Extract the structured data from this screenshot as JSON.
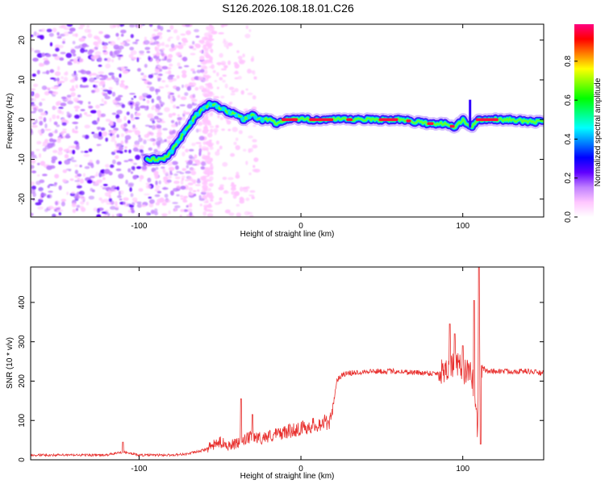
{
  "title": "S126.2026.108.18.01.C26",
  "chart_data": [
    {
      "type": "heatmap",
      "name": "spectrogram",
      "xlabel": "Height of straight line (km)",
      "ylabel": "Frequency (Hz)",
      "xlim": [
        -167,
        150
      ],
      "ylim": [
        -24.5,
        24
      ],
      "xticks": [
        -100,
        0,
        100
      ],
      "yticks": [
        -20,
        -10,
        0,
        10,
        20
      ],
      "colorbar": {
        "label": "Normalized spectral amplitude",
        "range": [
          0,
          0.99
        ],
        "ticks": [
          0.0,
          0.2,
          0.4,
          0.6,
          0.8
        ],
        "tick_labels": [
          "0.0",
          "0.2",
          "0.4",
          "0.6",
          "0.8"
        ],
        "colormap": [
          "#ffffff",
          "#ffc6ff",
          "#c080ff",
          "#6000ff",
          "#0000ff",
          "#0080ff",
          "#00ffff",
          "#00ff80",
          "#00ff00",
          "#80ff00",
          "#ffff00",
          "#ff8000",
          "#ff0000",
          "#ff0080"
        ]
      },
      "ridge_trace": {
        "height_km": [
          -85,
          -80,
          -75,
          -70,
          -65,
          -60,
          -55,
          -50,
          -45,
          -40,
          -35,
          -30,
          -25,
          -20,
          -15,
          -10,
          0,
          20,
          40,
          60,
          80,
          90,
          95,
          100,
          105,
          110,
          120,
          130,
          140,
          150
        ],
        "frequency_hz": [
          -10,
          -8,
          -5,
          -2,
          1,
          3,
          4,
          3,
          2,
          1,
          0,
          1,
          0,
          0,
          -1,
          0,
          0,
          0,
          0,
          0,
          -1,
          -1,
          -2,
          0,
          -2,
          0,
          0,
          0,
          -0.5,
          -0.5
        ]
      }
    },
    {
      "type": "line",
      "name": "snr",
      "xlabel": "Height of straight line (km)",
      "ylabel": "SNR (10 * v/v)",
      "xlim": [
        -167,
        150
      ],
      "ylim": [
        0,
        490
      ],
      "xticks": [
        -100,
        0,
        100
      ],
      "yticks": [
        0,
        100,
        200,
        300,
        400
      ],
      "color": "#e8302e",
      "series": [
        {
          "name": "SNR",
          "x": [
            -167,
            -140,
            -120,
            -110,
            -100,
            -90,
            -80,
            -70,
            -60,
            -55,
            -50,
            -45,
            -40,
            -35,
            -30,
            -25,
            -20,
            -15,
            -10,
            -5,
            0,
            5,
            10,
            15,
            19,
            20,
            22,
            25,
            30,
            40,
            50,
            60,
            70,
            80,
            85,
            90,
            95,
            100,
            103,
            106,
            109,
            110,
            111,
            112,
            115,
            120,
            130,
            140,
            150
          ],
          "y": [
            12,
            12,
            12,
            20,
            12,
            12,
            12,
            15,
            25,
            35,
            45,
            38,
            40,
            50,
            60,
            55,
            60,
            65,
            70,
            75,
            80,
            85,
            90,
            95,
            100,
            140,
            200,
            215,
            220,
            225,
            225,
            225,
            222,
            220,
            220,
            235,
            240,
            230,
            220,
            210,
            90,
            200,
            230,
            235,
            225,
            225,
            225,
            225,
            220
          ]
        }
      ],
      "spikes": [
        {
          "x": -110,
          "y": 45
        },
        {
          "x": -37,
          "y": 155
        },
        {
          "x": -30,
          "y": 115
        },
        {
          "x": 92,
          "y": 345
        },
        {
          "x": 95,
          "y": 320
        },
        {
          "x": 100,
          "y": 290
        },
        {
          "x": 107,
          "y": 405
        },
        {
          "x": 110,
          "y": 490
        },
        {
          "x": 111,
          "y": 40
        }
      ]
    }
  ]
}
